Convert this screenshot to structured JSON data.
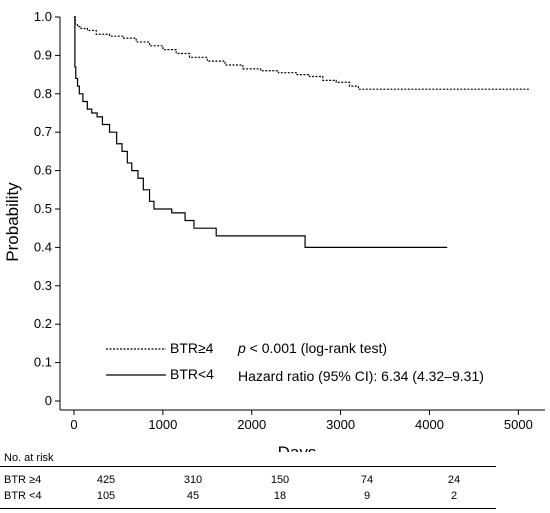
{
  "chart_data": {
    "type": "line",
    "title": "",
    "xlabel": "Days",
    "ylabel": "Probability",
    "xlim": [
      0,
      5300
    ],
    "ylim": [
      0,
      1.0
    ],
    "xticks": [
      0,
      1000,
      2000,
      3000,
      4000,
      5000
    ],
    "xtick_labels": [
      "0",
      "1000",
      "2000",
      "3000",
      "4000",
      "5000"
    ],
    "yticks": [
      0,
      0.1,
      0.2,
      0.3,
      0.4,
      0.5,
      0.6,
      0.7,
      0.8,
      0.9,
      1.0
    ],
    "ytick_labels": [
      "0",
      "0.1",
      "0.2",
      "0.3",
      "0.4",
      "0.5",
      "0.6",
      "0.7",
      "0.8",
      "0.9",
      "1.0"
    ],
    "grid": false,
    "legend_position": "bottom-left",
    "series": [
      {
        "name": "BTR≥4",
        "line_style": "dotted",
        "step": true,
        "x": [
          0,
          15,
          40,
          80,
          150,
          250,
          400,
          550,
          700,
          850,
          1000,
          1150,
          1300,
          1500,
          1700,
          1900,
          2100,
          2300,
          2500,
          2650,
          2800,
          2950,
          3100,
          3200,
          3400,
          3700,
          4000,
          4500,
          5130
        ],
        "y": [
          1.0,
          0.98,
          0.975,
          0.97,
          0.965,
          0.955,
          0.95,
          0.945,
          0.935,
          0.925,
          0.915,
          0.905,
          0.895,
          0.885,
          0.875,
          0.865,
          0.86,
          0.855,
          0.85,
          0.845,
          0.835,
          0.83,
          0.82,
          0.812,
          0.812,
          0.812,
          0.812,
          0.812,
          0.812
        ]
      },
      {
        "name": "BTR<4",
        "line_style": "solid",
        "step": true,
        "x": [
          0,
          10,
          20,
          40,
          60,
          100,
          150,
          200,
          260,
          320,
          400,
          480,
          540,
          600,
          650,
          720,
          780,
          850,
          900,
          1000,
          1100,
          1250,
          1350,
          1500,
          1600,
          2000,
          2300,
          2550,
          2600,
          3000,
          3500,
          4200
        ],
        "y": [
          1.0,
          0.87,
          0.84,
          0.82,
          0.8,
          0.78,
          0.76,
          0.75,
          0.74,
          0.72,
          0.7,
          0.67,
          0.65,
          0.62,
          0.6,
          0.58,
          0.55,
          0.52,
          0.5,
          0.5,
          0.49,
          0.47,
          0.45,
          0.45,
          0.43,
          0.43,
          0.43,
          0.43,
          0.4,
          0.4,
          0.4,
          0.4
        ]
      }
    ],
    "legend": [
      {
        "label": "BTR≥4",
        "line_style": "dotted"
      },
      {
        "label": "BTR<4",
        "line_style": "solid"
      }
    ],
    "annotations": {
      "pvalue_symbol": "p",
      "pvalue_text": " < 0.001 (log-rank test)",
      "hazard_text": "Hazard ratio (95% CI): 6.34 (4.32–9.31)"
    }
  },
  "risk_table": {
    "title": "No. at risk",
    "rows": [
      {
        "label": "BTR ≥4",
        "values": [
          "425",
          "310",
          "150",
          "74",
          "24"
        ]
      },
      {
        "label": "BTR <4",
        "values": [
          "105",
          "45",
          "18",
          "9",
          "2"
        ]
      }
    ]
  }
}
